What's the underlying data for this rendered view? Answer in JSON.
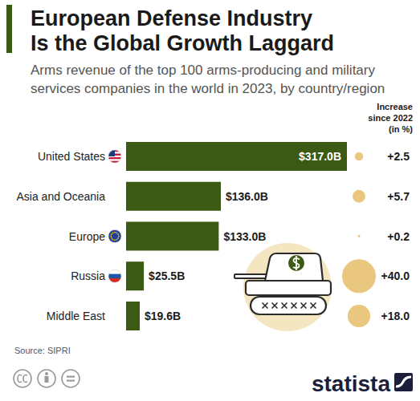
{
  "chart_data": {
    "type": "bar",
    "orientation": "horizontal",
    "title": "European Defense Industry Is the Global Growth Laggard",
    "subtitle": "Arms revenue of the top 100 arms-producing and military services companies in the world in 2023, by country/region",
    "categories": [
      "United States",
      "Asia and Oceania",
      "Europe",
      "Russia",
      "Middle East"
    ],
    "values": [
      317.0,
      136.0,
      133.0,
      25.5,
      19.6
    ],
    "value_labels": [
      "$317.0B",
      "$136.0B",
      "$133.0B",
      "$25.5B",
      "$19.6B"
    ],
    "color": "#3b5a14",
    "xlim": [
      0,
      317
    ],
    "data_labels": true,
    "tick_labels": false,
    "grid": false,
    "bubbles": {
      "title": "Increase since 2022 (in %)",
      "values": [
        2.5,
        5.7,
        0.2,
        40.0,
        18.0
      ],
      "value_labels": [
        "+2.5",
        "+5.7",
        "+0.2",
        "+40.0",
        "+18.0"
      ],
      "color": "#e9c77f"
    },
    "source": "Source: SIPRI",
    "brand": "statista"
  }
}
